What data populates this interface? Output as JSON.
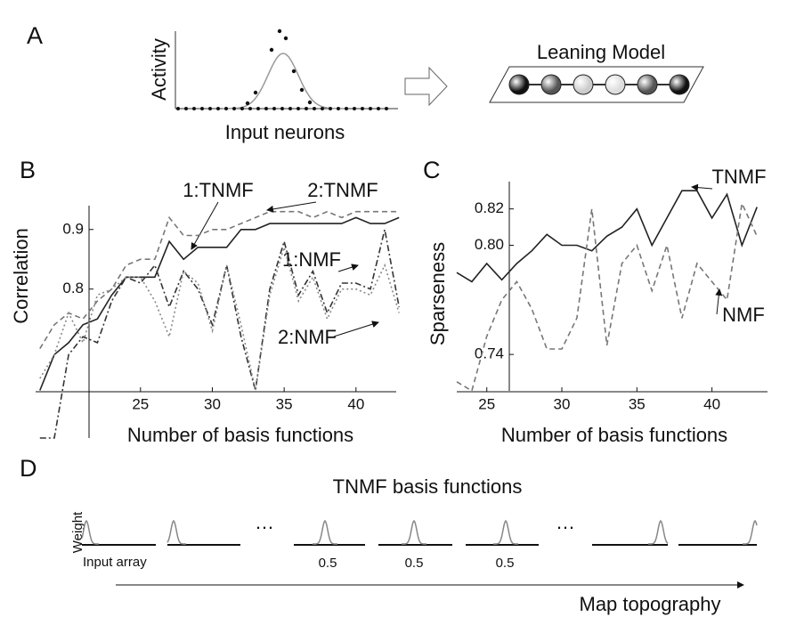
{
  "panel_labels": [
    "A",
    "B",
    "C",
    "D"
  ],
  "panel_a": {
    "y_label": "Activity",
    "x_label": "Input neurons",
    "model_title": "Leaning Model"
  },
  "chart_data": [
    {
      "type": "line",
      "y_label": "Correlation",
      "x_label": "Number of  basis functions",
      "x": [
        18,
        19,
        20,
        21,
        22,
        23,
        24,
        25,
        26,
        27,
        28,
        29,
        30,
        31,
        32,
        33,
        34,
        35,
        36,
        37,
        38,
        39,
        40,
        41,
        42,
        43
      ],
      "xlim": [
        17.7,
        42.8
      ],
      "xticks": [
        25,
        30,
        35,
        40
      ],
      "ylim": [
        0.55,
        0.94
      ],
      "yticks": [
        0.8,
        0.9
      ],
      "series": [
        {
          "name": "1:TNMF",
          "color": "#222222",
          "dash": "solid",
          "values": [
            0.63,
            0.69,
            0.71,
            0.74,
            0.75,
            0.79,
            0.82,
            0.82,
            0.82,
            0.88,
            0.85,
            0.87,
            0.87,
            0.87,
            0.9,
            0.9,
            0.91,
            0.91,
            0.91,
            0.91,
            0.91,
            0.91,
            0.92,
            0.91,
            0.91,
            0.92
          ]
        },
        {
          "name": "2:TNMF",
          "color": "#777777",
          "dash": "dashed",
          "values": [
            0.7,
            0.74,
            0.76,
            0.75,
            0.78,
            0.8,
            0.84,
            0.85,
            0.85,
            0.92,
            0.89,
            0.89,
            0.9,
            0.9,
            0.91,
            0.92,
            0.93,
            0.93,
            0.93,
            0.92,
            0.93,
            0.92,
            0.93,
            0.93,
            0.93,
            0.93
          ]
        },
        {
          "name": "1:NMF",
          "color": "#333333",
          "dash": "dashdot",
          "values": [
            0.55,
            0.55,
            0.69,
            0.72,
            0.71,
            0.78,
            0.82,
            0.81,
            0.84,
            0.77,
            0.83,
            0.8,
            0.74,
            0.84,
            0.72,
            0.63,
            0.8,
            0.88,
            0.79,
            0.83,
            0.76,
            0.81,
            0.81,
            0.8,
            0.9,
            0.77
          ]
        },
        {
          "name": "2:NMF",
          "color": "#888888",
          "dash": "dotted",
          "values": [
            0.65,
            0.69,
            0.76,
            0.71,
            0.79,
            0.8,
            0.82,
            0.82,
            0.78,
            0.72,
            0.83,
            0.81,
            0.73,
            0.84,
            0.74,
            0.63,
            0.79,
            0.87,
            0.78,
            0.82,
            0.75,
            0.8,
            0.8,
            0.79,
            0.84,
            0.76
          ]
        }
      ]
    },
    {
      "type": "line",
      "y_label": "Sparseness",
      "x_label": "Number of  basis functions",
      "x": [
        23,
        24,
        25,
        26,
        27,
        28,
        29,
        30,
        31,
        32,
        33,
        34,
        35,
        36,
        37,
        38,
        39,
        40,
        41,
        42,
        43
      ],
      "xlim": [
        23,
        43.7
      ],
      "xticks": [
        25,
        30,
        35,
        40
      ],
      "ylim": [
        0.72,
        0.835
      ],
      "yticks": [
        0.74,
        {
          "value": 0.8,
          "label": "0.80"
        },
        0.82
      ],
      "series": [
        {
          "name": "TNMF",
          "color": "#222222",
          "dash": "solid",
          "values": [
            0.785,
            0.78,
            0.79,
            0.781,
            0.79,
            0.797,
            0.806,
            0.8,
            0.8,
            0.797,
            0.805,
            0.81,
            0.82,
            0.8,
            0.815,
            0.83,
            0.83,
            0.815,
            0.828,
            0.8,
            0.821
          ]
        },
        {
          "name": "NMF",
          "color": "#777777",
          "dash": "dashed",
          "values": [
            0.725,
            0.72,
            0.75,
            0.77,
            0.78,
            0.765,
            0.743,
            0.743,
            0.76,
            0.82,
            0.745,
            0.79,
            0.8,
            0.775,
            0.8,
            0.76,
            0.79,
            0.78,
            0.77,
            0.823,
            0.805
          ]
        }
      ]
    }
  ],
  "panel_d": {
    "title": "TNMF basis functions",
    "y_label": "Weight",
    "x_label": "Input array",
    "tick_labels": [
      "0.5",
      "0.5",
      "0.5"
    ],
    "arrow_label": "Map topography"
  }
}
